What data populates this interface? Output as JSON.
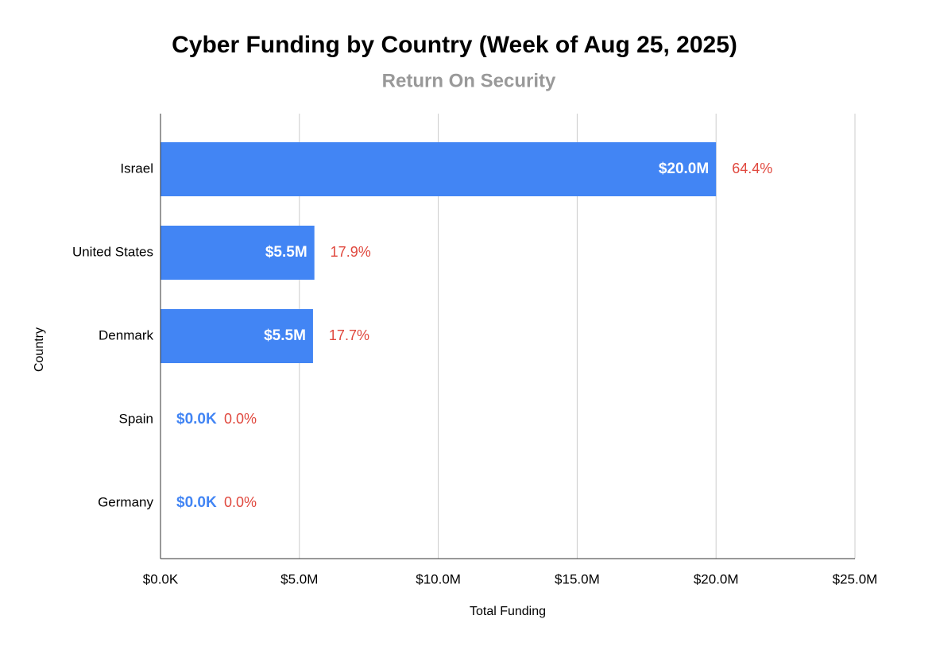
{
  "chart_data": {
    "type": "hbar",
    "title": "Cyber Funding by Country (Week of Aug 25, 2025)",
    "subtitle": "Return On Security",
    "x_label": "Total Funding",
    "y_label": "Country",
    "categories": [
      "Israel",
      "United States",
      "Denmark",
      "Spain",
      "Germany"
    ],
    "values": [
      20000000,
      5540000,
      5490000,
      0,
      0
    ],
    "value_labels": [
      "$20.0M",
      "$5.5M",
      "$5.5M",
      "$0.0K",
      "$0.0K"
    ],
    "percent_labels": [
      "64.4%",
      "17.9%",
      "17.7%",
      "0.0%",
      "0.0%"
    ],
    "color": "#4285f4",
    "percent_color": "#e0483e",
    "xlim": [
      0,
      25000000
    ],
    "xticks": [
      {
        "value": 0,
        "label": "$0.0K"
      },
      {
        "value": 5000000,
        "label": "$5.0M"
      },
      {
        "value": 10000000,
        "label": "$10.0M"
      },
      {
        "value": 15000000,
        "label": "$15.0M"
      },
      {
        "value": 20000000,
        "label": "$20.0M"
      },
      {
        "value": 25000000,
        "label": "$25.0M"
      }
    ],
    "grid": true
  }
}
